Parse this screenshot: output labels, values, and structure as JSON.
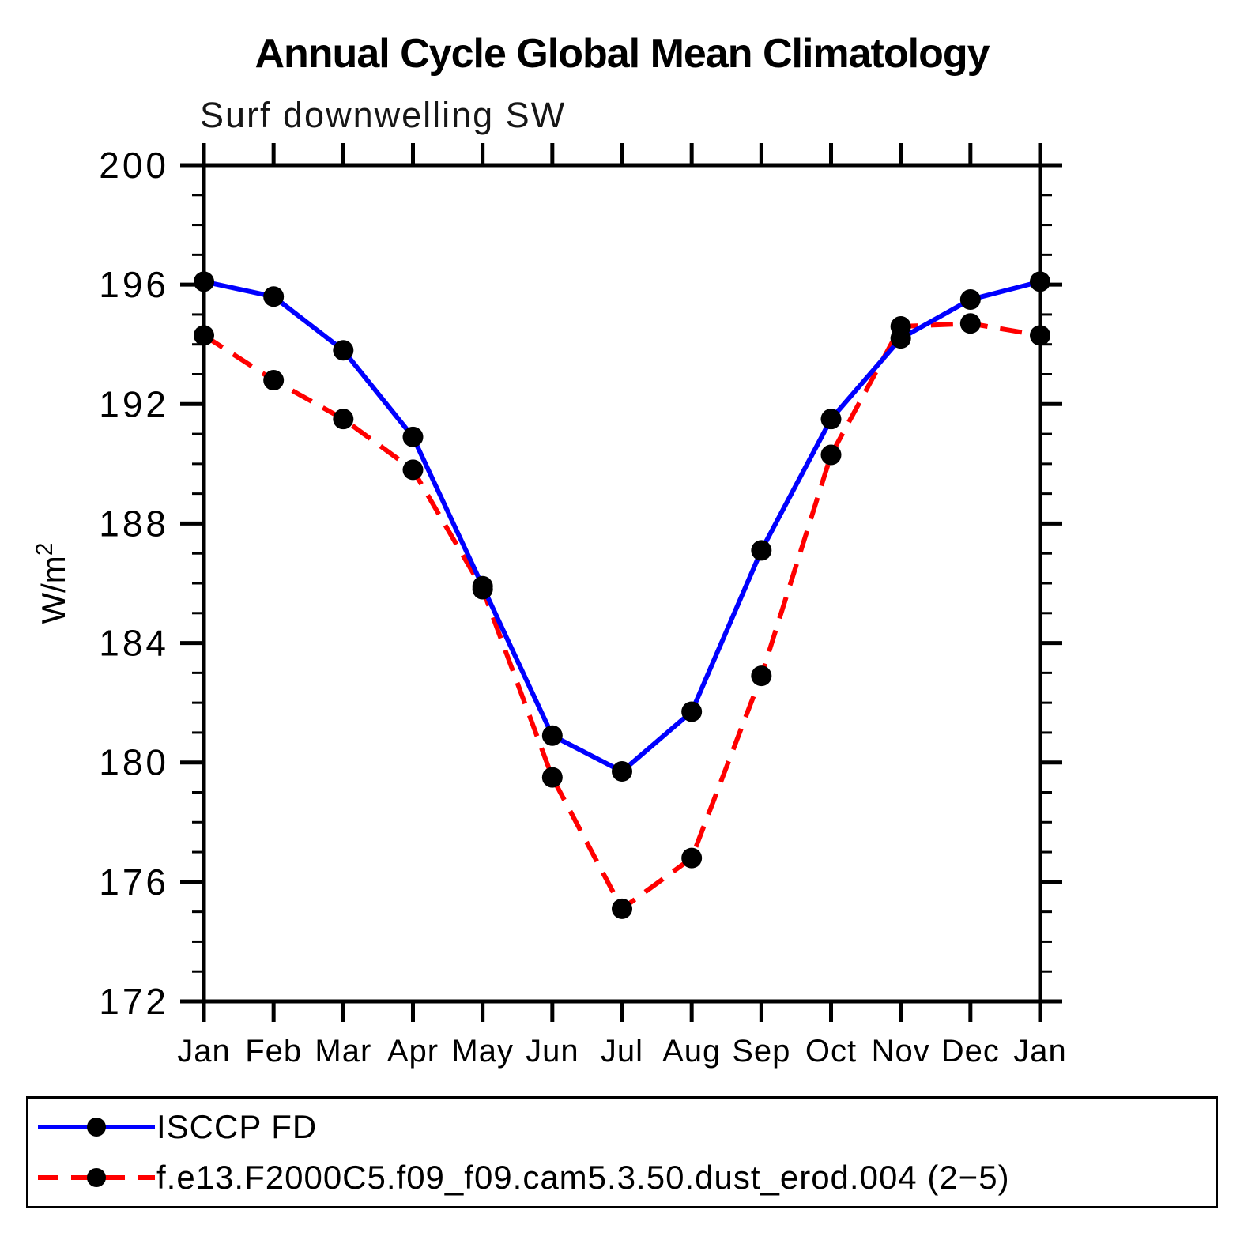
{
  "chart_data": {
    "type": "line",
    "title": "Annual Cycle Global Mean Climatology",
    "subtitle": "Surf downwelling SW",
    "ylabel": "W/m²",
    "xlabel": "",
    "categories": [
      "Jan",
      "Feb",
      "Mar",
      "Apr",
      "May",
      "Jun",
      "Jul",
      "Aug",
      "Sep",
      "Oct",
      "Nov",
      "Dec",
      "Jan"
    ],
    "ylim": [
      172,
      200
    ],
    "yticks": [
      200,
      196,
      192,
      188,
      184,
      180,
      176,
      172
    ],
    "minor_tick_step": 1,
    "grid": false,
    "legend_position": "bottom",
    "axis_color": "#000000",
    "marker_color": "#000000",
    "series": [
      {
        "name": "ISCCP FD",
        "color": "#0000ff",
        "style": "solid",
        "marker": "circle",
        "values": [
          196.1,
          195.6,
          193.8,
          190.9,
          185.9,
          180.9,
          179.7,
          181.7,
          187.1,
          191.5,
          194.2,
          195.5,
          196.1
        ]
      },
      {
        "name": "f.e13.F2000C5.f09_f09.cam5.3.50.dust_erod.004 (2−5)",
        "color": "#ff0000",
        "style": "dashed",
        "marker": "circle",
        "values": [
          194.3,
          192.8,
          191.5,
          189.8,
          185.8,
          179.5,
          175.1,
          176.8,
          182.9,
          190.3,
          194.6,
          194.7,
          194.3
        ]
      }
    ]
  }
}
